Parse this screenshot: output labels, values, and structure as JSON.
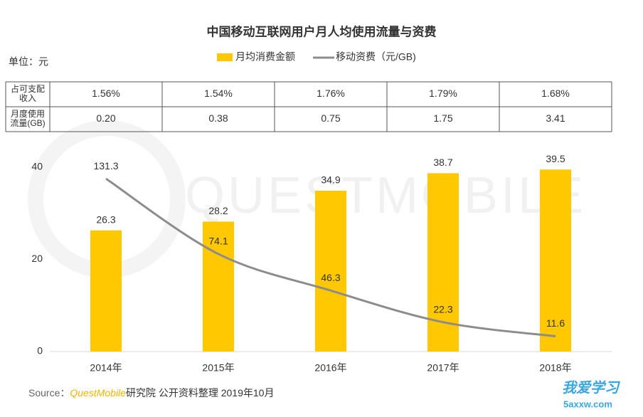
{
  "chart_data": {
    "type": "bar",
    "title": "中国移动互联网用户月人均使用流量与资费",
    "unit_label": "单位：元",
    "categories": [
      "2014年",
      "2015年",
      "2016年",
      "2017年",
      "2018年"
    ],
    "series": [
      {
        "name": "月均消费金额",
        "type": "bar",
        "color": "#ffc800",
        "values": [
          26.3,
          28.2,
          34.9,
          38.7,
          39.5
        ]
      },
      {
        "name": "移动资费（元/GB)",
        "type": "line",
        "axis": "y2",
        "color": "#8c8c8c",
        "values": [
          131.3,
          74.1,
          46.3,
          22.3,
          11.6
        ]
      }
    ],
    "ylim": [
      0,
      40
    ],
    "yticks": [
      0,
      20,
      40
    ],
    "y2lim": [
      0,
      140
    ],
    "table": {
      "rows": [
        {
          "label": [
            "占可支配",
            "收入"
          ],
          "values": [
            "1.56%",
            "1.54%",
            "1.76%",
            "1.79%",
            "1.68%"
          ]
        },
        {
          "label": [
            "月度使用",
            "流量(GB)"
          ],
          "values": [
            "0.20",
            "0.38",
            "0.75",
            "1.75",
            "3.41"
          ]
        }
      ]
    },
    "source": {
      "prefix": "Source：",
      "brand": "QuestMobile",
      "rest": "研究院 公开资料整理 2019年10月"
    },
    "watermark": "QUESTMOBILE",
    "logo": {
      "text": "我爱学习",
      "url": "5axxw.com"
    }
  }
}
